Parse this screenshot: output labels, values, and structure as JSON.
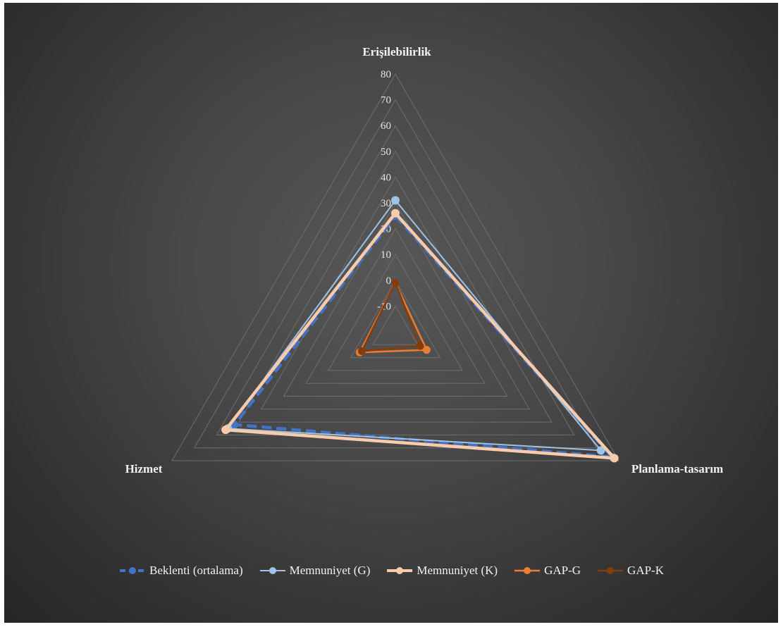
{
  "chart_data": {
    "type": "radar",
    "categories": [
      "Erişilebilirlik",
      "Planlama-tasarım",
      "Hizmet"
    ],
    "r_axis": {
      "min": -20,
      "max": 80,
      "ticks": [
        80,
        70,
        60,
        50,
        40,
        30,
        20,
        10,
        0,
        -10
      ]
    },
    "series": [
      {
        "name": "Beklenti (ortalama)",
        "values": [
          25,
          77,
          52
        ],
        "color": "#4472c4",
        "line_style": "dashed",
        "marker": "circle"
      },
      {
        "name": "Memnuniyet (G)",
        "values": [
          31,
          72,
          55
        ],
        "color": "#9dc3e6",
        "line_style": "solid",
        "marker": "circle"
      },
      {
        "name": "Memnuniyet (K)",
        "values": [
          26,
          78,
          56
        ],
        "color": "#f8cbad",
        "line_style": "solid",
        "marker": "circle"
      },
      {
        "name": "GAP-G",
        "values": [
          -1,
          -6,
          -4
        ],
        "color": "#ed7d31",
        "line_style": "solid",
        "marker": "circle"
      },
      {
        "name": "GAP-K",
        "values": [
          -1,
          -9,
          -5
        ],
        "color": "#843c0c",
        "line_style": "solid",
        "marker": "circle"
      }
    ],
    "legend_position": "bottom",
    "gridlines": true
  }
}
